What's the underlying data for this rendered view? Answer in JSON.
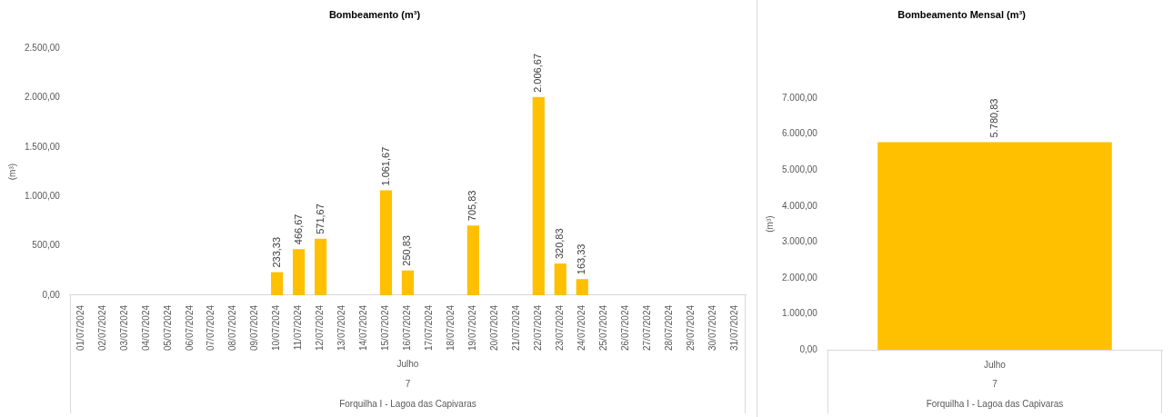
{
  "chart_data": [
    {
      "type": "bar",
      "title": "Bombeamento (m³)",
      "ylabel": "(m³)",
      "categories": [
        "01/07/2024",
        "02/07/2024",
        "03/07/2024",
        "04/07/2024",
        "05/07/2024",
        "06/07/2024",
        "07/07/2024",
        "08/07/2024",
        "09/07/2024",
        "10/07/2024",
        "11/07/2024",
        "12/07/2024",
        "13/07/2024",
        "14/07/2024",
        "15/07/2024",
        "16/07/2024",
        "17/07/2024",
        "18/07/2024",
        "19/07/2024",
        "20/07/2024",
        "21/07/2024",
        "22/07/2024",
        "23/07/2024",
        "24/07/2024",
        "25/07/2024",
        "26/07/2024",
        "27/07/2024",
        "28/07/2024",
        "29/07/2024",
        "30/07/2024",
        "31/07/2024"
      ],
      "values": [
        null,
        null,
        null,
        null,
        null,
        null,
        null,
        null,
        null,
        233.33,
        466.67,
        571.67,
        null,
        null,
        1061.67,
        250.83,
        null,
        null,
        705.83,
        null,
        null,
        2006.67,
        320.83,
        163.33,
        null,
        null,
        null,
        null,
        null,
        null,
        null
      ],
      "value_labels": [
        null,
        null,
        null,
        null,
        null,
        null,
        null,
        null,
        null,
        "233,33",
        "466,67",
        "571,67",
        null,
        null,
        "1.061,67",
        "250,83",
        null,
        null,
        "705,83",
        null,
        null,
        "2.006,67",
        "320,83",
        "163,33",
        null,
        null,
        null,
        null,
        null,
        null,
        null
      ],
      "color": "#ffc000",
      "ylim": [
        0,
        2500
      ],
      "yticks": [
        {
          "value": 0,
          "label": "0,00"
        },
        {
          "value": 500,
          "label": "500,00"
        },
        {
          "value": 1000,
          "label": "1.000,00"
        },
        {
          "value": 1500,
          "label": "1.500,00"
        },
        {
          "value": 2000,
          "label": "2.000,00"
        },
        {
          "value": 2500,
          "label": "2.500,00"
        }
      ],
      "annotations": [
        "Julho",
        "7",
        "Forquilha I - Lagoa das Capivaras"
      ],
      "legend": false
    },
    {
      "type": "bar",
      "title": "Bombeamento Mensal (m³)",
      "ylabel": "(m³)",
      "categories": [
        "Julho"
      ],
      "values": [
        5780.83
      ],
      "value_labels": [
        "5.780,83"
      ],
      "color": "#ffc000",
      "ylim": [
        0,
        7000
      ],
      "yticks": [
        {
          "value": 0,
          "label": "0,00"
        },
        {
          "value": 1000,
          "label": "1.000,00"
        },
        {
          "value": 2000,
          "label": "2.000,00"
        },
        {
          "value": 3000,
          "label": "3.000,00"
        },
        {
          "value": 4000,
          "label": "4.000,00"
        },
        {
          "value": 5000,
          "label": "5.000,00"
        },
        {
          "value": 6000,
          "label": "6.000,00"
        },
        {
          "value": 7000,
          "label": "7.000,00"
        }
      ],
      "annotations": [
        "7",
        "Forquilha I - Lagoa das Capivaras"
      ],
      "legend": false
    }
  ]
}
